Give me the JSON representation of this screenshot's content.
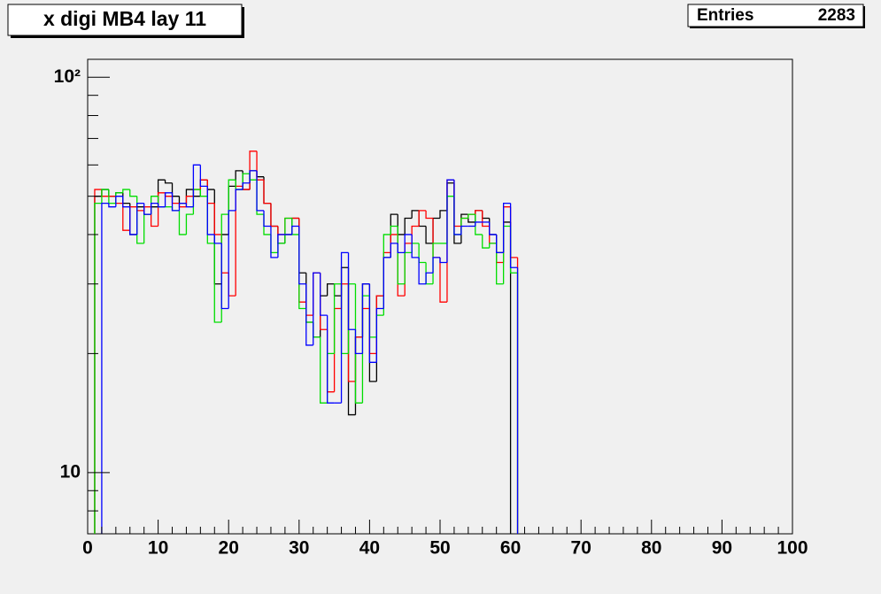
{
  "chart_data": {
    "type": "histogram",
    "title": "x digi MB4 lay 11",
    "stats_label": "Entries",
    "stats_value": 2283,
    "bins": [
      0,
      1,
      2,
      3,
      4,
      5,
      6,
      7,
      8,
      9,
      10,
      11,
      12,
      13,
      14,
      15,
      16,
      17,
      18,
      19,
      20,
      21,
      22,
      23,
      24,
      25,
      26,
      27,
      28,
      29,
      30,
      31,
      32,
      33,
      34,
      35,
      36,
      37,
      38,
      39,
      40,
      41,
      42,
      43,
      44,
      45,
      46,
      47,
      48,
      49,
      50,
      51,
      52,
      53,
      54,
      55,
      56,
      57,
      58,
      59,
      60,
      61,
      62,
      63,
      64,
      65,
      66,
      67,
      68,
      69,
      70,
      71,
      72,
      73,
      74,
      75,
      76,
      77,
      78,
      79,
      80,
      81,
      82,
      83,
      84,
      85,
      86,
      87,
      88,
      89,
      90,
      91,
      92,
      93,
      94,
      95,
      96,
      97,
      98,
      99,
      100
    ],
    "series": [
      {
        "color": "#000000",
        "values": [
          0,
          50,
          52,
          50,
          51,
          48,
          40,
          47,
          45,
          47,
          55,
          54,
          50,
          48,
          52,
          50,
          55,
          52,
          30,
          40,
          53,
          58,
          52,
          58,
          56,
          48,
          42,
          38,
          40,
          44,
          32,
          24,
          22,
          28,
          30,
          28,
          33,
          14,
          22,
          30,
          17,
          28,
          35,
          45,
          40,
          44,
          46,
          42,
          38,
          44,
          46,
          54,
          38,
          45,
          43,
          46,
          44,
          40,
          36,
          43,
          0,
          0,
          0,
          0,
          0,
          0,
          0,
          0,
          0,
          0,
          0,
          0,
          0,
          0,
          0,
          0,
          0,
          0,
          0,
          0,
          0,
          0,
          0,
          0,
          0,
          0,
          0,
          0,
          0,
          0,
          0,
          0,
          0,
          0,
          0,
          0,
          0,
          0,
          0,
          0
        ]
      },
      {
        "color": "#ff0000",
        "values": [
          0,
          52,
          50,
          50,
          48,
          41,
          47,
          46,
          47,
          42,
          51,
          50,
          48,
          47,
          50,
          52,
          55,
          48,
          40,
          32,
          28,
          53,
          52,
          65,
          55,
          48,
          42,
          40,
          44,
          44,
          27,
          25,
          32,
          23,
          16,
          26,
          30,
          17,
          22,
          26,
          20,
          28,
          36,
          40,
          28,
          38,
          42,
          46,
          44,
          35,
          27,
          55,
          42,
          44,
          45,
          46,
          42,
          38,
          34,
          47,
          35,
          0,
          0,
          0,
          0,
          0,
          0,
          0,
          0,
          0,
          0,
          0,
          0,
          0,
          0,
          0,
          0,
          0,
          0,
          0,
          0,
          0,
          0,
          0,
          0,
          0,
          0,
          0,
          0,
          0,
          0,
          0,
          0,
          0,
          0,
          0,
          0,
          0,
          0,
          0
        ]
      },
      {
        "color": "#00dd00",
        "values": [
          0,
          48,
          52,
          48,
          51,
          52,
          50,
          38,
          45,
          50,
          47,
          47,
          46,
          40,
          45,
          52,
          50,
          38,
          24,
          45,
          55,
          52,
          57,
          55,
          45,
          40,
          36,
          38,
          44,
          40,
          26,
          24,
          22,
          15,
          20,
          30,
          20,
          30,
          15,
          28,
          22,
          25,
          40,
          42,
          30,
          36,
          38,
          34,
          30,
          38,
          38,
          50,
          40,
          44,
          45,
          40,
          37,
          38,
          30,
          42,
          32,
          0,
          0,
          0,
          0,
          0,
          0,
          0,
          0,
          0,
          0,
          0,
          0,
          0,
          0,
          0,
          0,
          0,
          0,
          0,
          0,
          0,
          0,
          0,
          0,
          0,
          0,
          0,
          0,
          0,
          0,
          0,
          0,
          0,
          0,
          0,
          0,
          0,
          0,
          0
        ]
      },
      {
        "color": "#0000ff",
        "values": [
          0,
          0,
          48,
          47,
          50,
          47,
          40,
          48,
          45,
          48,
          47,
          51,
          46,
          48,
          47,
          60,
          53,
          40,
          38,
          26,
          46,
          52,
          54,
          58,
          46,
          42,
          35,
          40,
          40,
          42,
          30,
          21,
          32,
          25,
          15,
          15,
          36,
          23,
          20,
          30,
          19,
          26,
          35,
          38,
          36,
          40,
          35,
          30,
          32,
          35,
          34,
          55,
          40,
          42,
          42,
          43,
          43,
          40,
          36,
          48,
          33,
          0,
          0,
          0,
          0,
          0,
          0,
          0,
          0,
          0,
          0,
          0,
          0,
          0,
          0,
          0,
          0,
          0,
          0,
          0,
          0,
          0,
          0,
          0,
          0,
          0,
          0,
          0,
          0,
          0,
          0,
          0,
          0,
          0,
          0,
          0,
          0,
          0,
          0,
          0
        ]
      }
    ],
    "xlim": [
      0,
      100
    ],
    "xticks": [
      0,
      10,
      20,
      30,
      40,
      50,
      60,
      70,
      80,
      90,
      100
    ],
    "ylim": [
      7,
      111
    ],
    "ylog": true,
    "yticks": [
      10,
      {
        "value": 100,
        "label": "10²"
      }
    ],
    "yminorticks": [
      8,
      9,
      20,
      30,
      40,
      50,
      60,
      70,
      80,
      90
    ]
  }
}
